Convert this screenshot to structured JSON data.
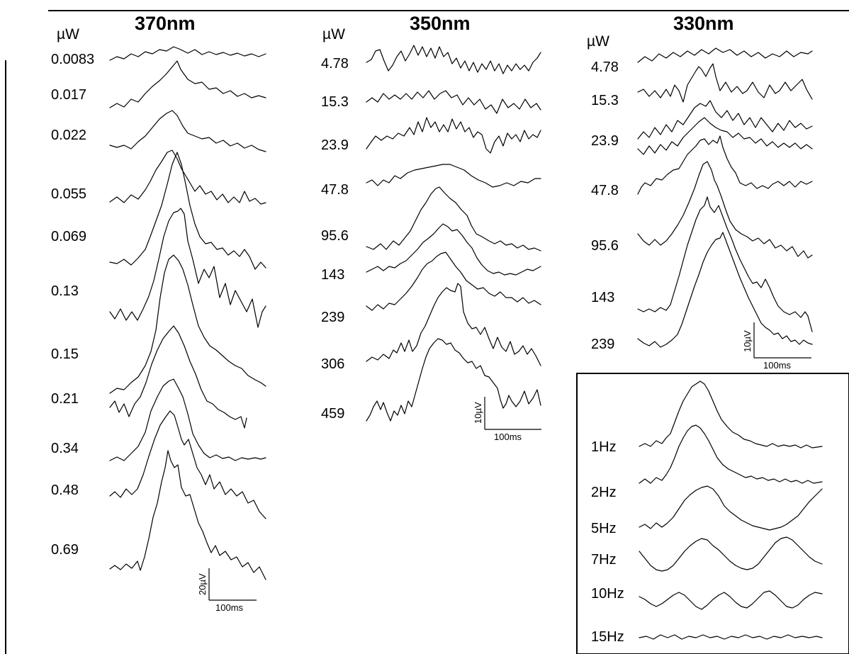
{
  "panels": {
    "nm370": {
      "title": "370nm",
      "unit": "µW",
      "labels": [
        "0.0083",
        "0.017",
        "0.022",
        "0.055",
        "0.069",
        "0.13",
        "0.15",
        "0.21",
        "0.34",
        "0.48",
        "0.69"
      ],
      "scale_v": "20µV",
      "scale_h": "100ms"
    },
    "nm350": {
      "title": "350nm",
      "unit": "µW",
      "labels": [
        "4.78",
        "15.3",
        "23.9",
        "47.8",
        "95.6",
        "143",
        "239",
        "306",
        "459"
      ],
      "scale_v": "10µV",
      "scale_h": "100ms"
    },
    "nm330": {
      "title": "330nm",
      "unit": "µW",
      "labels": [
        "4.78",
        "15.3",
        "23.9",
        "47.8",
        "95.6",
        "143",
        "239"
      ],
      "scale_v": "10µV",
      "scale_h": "100ms"
    },
    "freq": {
      "labels": [
        "1Hz",
        "2Hz",
        "5Hz",
        "7Hz",
        "10Hz",
        "15Hz"
      ]
    }
  }
}
